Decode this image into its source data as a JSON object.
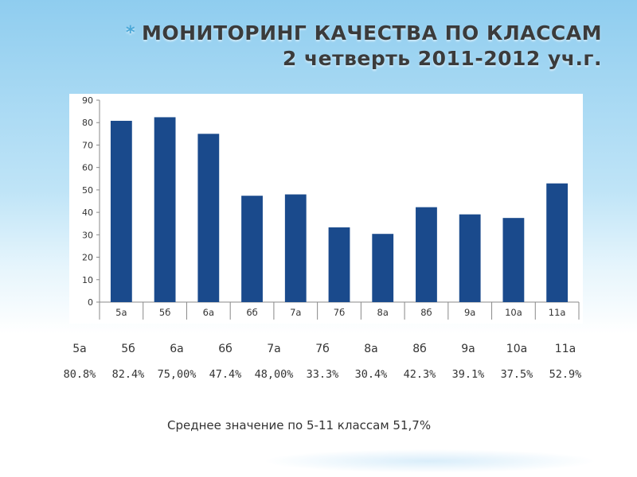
{
  "title": {
    "bullet": "*",
    "line1": "МОНИТОРИНГ КАЧЕСТВА ПО КЛАССАМ",
    "line2": "2 четверть 2011-2012 уч.г."
  },
  "chart_data": {
    "type": "bar",
    "categories": [
      "5а",
      "5б",
      "6а",
      "6б",
      "7а",
      "7б",
      "8а",
      "8б",
      "9а",
      "10а",
      "11а"
    ],
    "values": [
      80.8,
      82.4,
      75.0,
      47.4,
      48.0,
      33.3,
      30.4,
      42.3,
      39.1,
      37.5,
      52.9
    ],
    "ylim": [
      0,
      90
    ],
    "yticks": [
      0,
      10,
      20,
      30,
      40,
      50,
      60,
      70,
      80,
      90
    ],
    "bar_color": "#1a4a8c",
    "grid": false,
    "legend": "none"
  },
  "table": {
    "labels": [
      "5а",
      "5б",
      "6а",
      "6б",
      "7а",
      "7б",
      "8а",
      "8б",
      "9а",
      "10а",
      "11а"
    ],
    "values": [
      "80.8%",
      "82.4%",
      "75,00%",
      "47.4%",
      "48,00%",
      "33.3%",
      "30.4%",
      "42.3%",
      "39.1%",
      "37.5%",
      "52.9%"
    ]
  },
  "average": "Среднее значение по 5-11 классам 51,7%"
}
